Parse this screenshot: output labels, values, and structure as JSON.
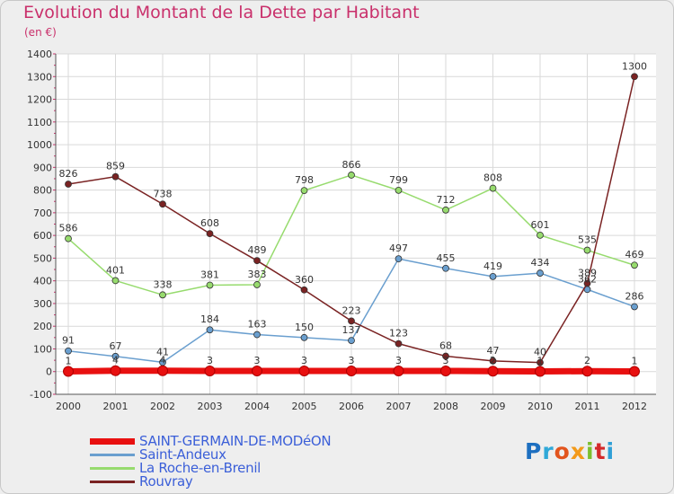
{
  "title": "Evolution du Montant de la Dette par Habitant",
  "unit_label": "(en €)",
  "brand": {
    "text": "Proxiti",
    "colors": [
      "#1d6fc0",
      "#2fa8d8",
      "#e2541d",
      "#f39a1a",
      "#7cbf2e",
      "#d42a2a",
      "#2f9fd6"
    ]
  },
  "chart_data": {
    "type": "line",
    "x": [
      "2000",
      "2001",
      "2002",
      "2003",
      "2004",
      "2005",
      "2006",
      "2007",
      "2008",
      "2009",
      "2010",
      "2011",
      "2012"
    ],
    "ylim": [
      -100,
      1400
    ],
    "yticks": [
      "-100",
      "0",
      "100",
      "200",
      "300",
      "400",
      "500",
      "600",
      "700",
      "800",
      "900",
      "1000",
      "1100",
      "1200",
      "1300",
      "1400"
    ],
    "grid": true,
    "legend_position": "bottom-left",
    "series": [
      {
        "name": "SAINT-GERMAIN-DE-MODéON",
        "color": "#e81010",
        "highlight": true,
        "values": [
          1,
          4,
          4,
          3,
          3,
          3,
          3,
          3,
          3,
          2,
          1,
          2,
          1
        ],
        "labels": [
          "1",
          "4",
          "4",
          "3",
          "3",
          "3",
          "3",
          "3",
          "3",
          "2",
          "1",
          "2",
          "1"
        ]
      },
      {
        "name": "Saint-Andeux",
        "color": "#6a9fcf",
        "values": [
          91,
          67,
          41,
          184,
          163,
          150,
          137,
          497,
          455,
          419,
          434,
          362,
          286
        ],
        "labels": [
          "91",
          "67",
          "41",
          "184",
          "163",
          "150",
          "137",
          "497",
          "455",
          "419",
          "434",
          "362",
          "286"
        ]
      },
      {
        "name": "La Roche-en-Brenil",
        "color": "#97db6e",
        "values": [
          586,
          401,
          338,
          381,
          383,
          798,
          866,
          799,
          712,
          808,
          601,
          535,
          469
        ],
        "labels": [
          "586",
          "401",
          "338",
          "381",
          "383",
          "798",
          "866",
          "799",
          "712",
          "808",
          "601",
          "535",
          "469"
        ]
      },
      {
        "name": "Rouvray",
        "color": "#7a2323",
        "values": [
          826,
          859,
          738,
          608,
          489,
          360,
          223,
          123,
          68,
          47,
          40,
          389,
          1300
        ],
        "labels": [
          "826",
          "859",
          "738",
          "608",
          "489",
          "360",
          "223",
          "123",
          "68",
          "47",
          "40",
          "389",
          "1300"
        ]
      }
    ]
  }
}
